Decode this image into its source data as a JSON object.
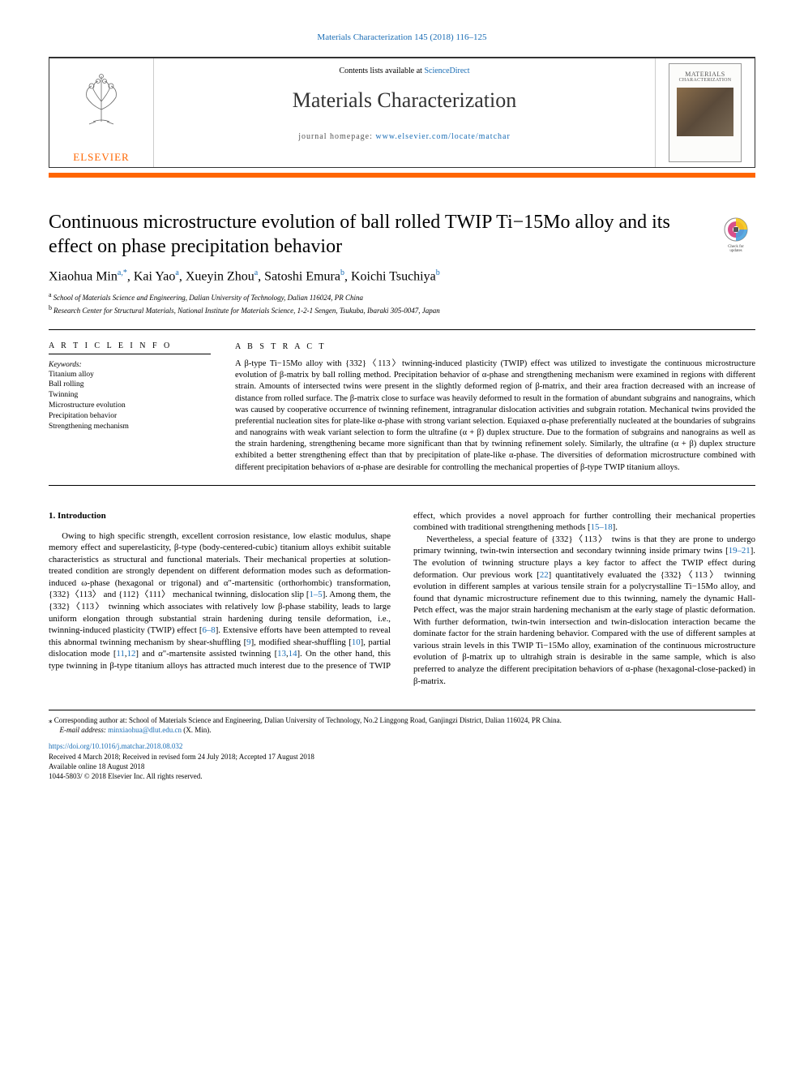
{
  "colors": {
    "link": "#1a6db5",
    "accent": "#ff6600",
    "text": "#000000",
    "bg": "#ffffff"
  },
  "header": {
    "running": "Materials Characterization 145 (2018) 116–125",
    "contents_prefix": "Contents lists available at ",
    "contents_link": "ScienceDirect",
    "journal_name": "Materials Characterization",
    "homepage_prefix": "journal homepage: ",
    "homepage_url": "www.elsevier.com/locate/matchar",
    "publisher": "ELSEVIER",
    "cover_title": "MATERIALS",
    "cover_sub": "CHARACTERIZATION",
    "check_updates": "Check for updates"
  },
  "article": {
    "title": "Continuous microstructure evolution of ball rolled TWIP Ti−15Mo alloy and its effect on phase precipitation behavior",
    "authors_html": "Xiaohua Min<sup>a,*</sup>, Kai Yao<sup>a</sup>, Xueyin Zhou<sup>a</sup>, Satoshi Emura<sup>b</sup>, Koichi Tsuchiya<sup>b</sup>",
    "affiliations": [
      {
        "key": "a",
        "text": "School of Materials Science and Engineering, Dalian University of Technology, Dalian 116024, PR China"
      },
      {
        "key": "b",
        "text": "Research Center for Structural Materials, National Institute for Materials Science, 1-2-1 Sengen, Tsukuba, Ibaraki 305-0047, Japan"
      }
    ]
  },
  "info": {
    "label": "A R T I C L E  I N F O",
    "kw_heading": "Keywords:",
    "keywords": [
      "Titanium alloy",
      "Ball rolling",
      "Twinning",
      "Microstructure evolution",
      "Precipitation behavior",
      "Strengthening mechanism"
    ]
  },
  "abstract": {
    "label": "A B S T R A C T",
    "text": "A β-type Ti−15Mo alloy with {332}〈113〉twinning-induced plasticity (TWIP) effect was utilized to investigate the continuous microstructure evolution of β-matrix by ball rolling method. Precipitation behavior of α-phase and strengthening mechanism were examined in regions with different strain. Amounts of intersected twins were present in the slightly deformed region of β-matrix, and their area fraction decreased with an increase of distance from rolled surface. The β-matrix close to surface was heavily deformed to result in the formation of abundant subgrains and nanograins, which was caused by cooperative occurrence of twinning refinement, intragranular dislocation activities and subgrain rotation. Mechanical twins provided the preferential nucleation sites for plate-like α-phase with strong variant selection. Equiaxed α-phase preferentially nucleated at the boundaries of subgrains and nanograins with weak variant selection to form the ultrafine (α + β) duplex structure. Due to the formation of subgrains and nanograins as well as the strain hardening, strengthening became more significant than that by twinning refinement solely. Similarly, the ultrafine (α + β) duplex structure exhibited a better strengthening effect than that by precipitation of plate-like α-phase. The diversities of deformation microstructure combined with different precipitation behaviors of α-phase are desirable for controlling the mechanical properties of β-type TWIP titanium alloys."
  },
  "body": {
    "heading": "1. Introduction",
    "p1": "Owing to high specific strength, excellent corrosion resistance, low elastic modulus, shape memory effect and superelasticity, β-type (body-centered-cubic) titanium alloys exhibit suitable characteristics as structural and functional materials. Their mechanical properties at solution-treated condition are strongly dependent on different deformation modes such as deformation-induced ω-phase (hexagonal or trigonal) and α\"-martensitic (orthorhombic) transformation, {332}〈113〉 and {112}〈111〉 mechanical twinning, dislocation slip [",
    "r1": "1–5",
    "p1b": "]. Among them, the {332}〈113〉 twinning which associates with relatively low β-phase stability, leads to large uniform elongation through substantial strain hardening during tensile deformation, i.e., twinning-induced plasticity (TWIP) effect [",
    "r2": "6–8",
    "p1c": "]. Extensive efforts have been attempted to reveal this abnormal twinning mechanism by shear-shuffling [",
    "r3": "9",
    "p1d": "], modified shear-shuffling [",
    "r4": "10",
    "p1e": "], partial dislocation mode [",
    "r5": "11",
    "r5b": "12",
    "p1f": "] and α\"-martensite assisted twinning [",
    "r6": "13",
    "r6b": "14",
    "p1g": "]. On the other hand, this type twinning in β-type titanium alloys has attracted much interest due to the presence of TWIP effect, which provides a novel approach for ",
    "p2a": "further controlling their mechanical properties combined with traditional strengthening methods [",
    "r7": "15–18",
    "p2b": "].",
    "p3a": "Nevertheless, a special feature of {332}〈113〉 twins is that they are prone to undergo primary twinning, twin-twin intersection and secondary twinning inside primary twins [",
    "r8": "19–21",
    "p3b": "]. The evolution of twinning structure plays a key factor to affect the TWIP effect during deformation. Our previous work [",
    "r9": "22",
    "p3c": "] quantitatively evaluated the {332}〈113〉 twinning evolution in different samples at various tensile strain for a polycrystalline Ti−15Mo alloy, and found that dynamic microstructure refinement due to this twinning, namely the dynamic Hall-Petch effect, was the major strain hardening mechanism at the early stage of plastic deformation. With further deformation, twin-twin intersection and twin-dislocation interaction became the dominate factor for the strain hardening behavior. Compared with the use of different samples at various strain levels in this TWIP Ti−15Mo alloy, examination of the continuous microstructure evolution of β-matrix up to ultrahigh strain is desirable in the same sample, which is also preferred to analyze the different precipitation behaviors of α-phase (hexagonal-close-packed) in β-matrix."
  },
  "footnotes": {
    "corr": "⁎ Corresponding author at: School of Materials Science and Engineering, Dalian University of Technology, No.2 Linggong Road, Ganjingzi District, Dalian 116024, PR China.",
    "email_label": "E-mail address: ",
    "email": "minxiaohua@dlut.edu.cn",
    "email_who": " (X. Min)."
  },
  "doi": {
    "url": "https://doi.org/10.1016/j.matchar.2018.08.032",
    "received": "Received 4 March 2018; Received in revised form 24 July 2018; Accepted 17 August 2018",
    "online": "Available online 18 August 2018",
    "copyright": "1044-5803/ © 2018 Elsevier Inc. All rights reserved."
  }
}
